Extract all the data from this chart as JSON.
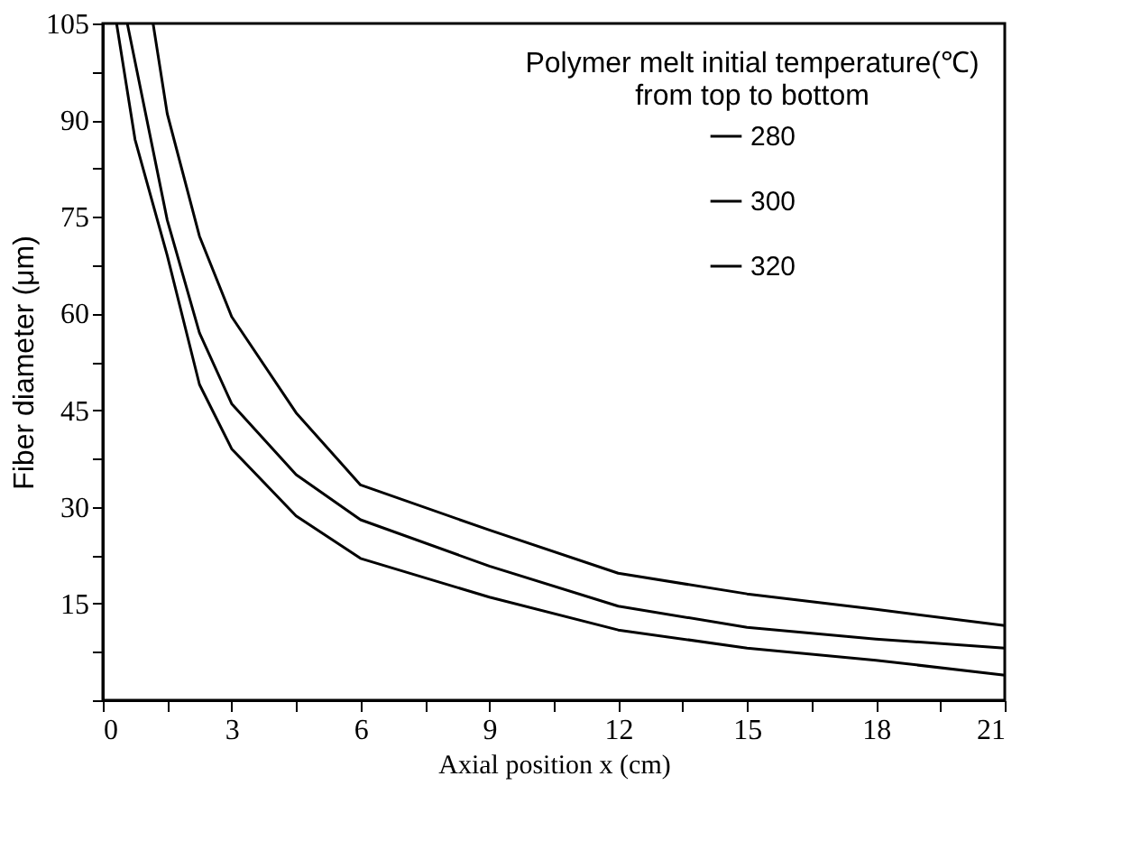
{
  "chart_data": {
    "type": "line",
    "xlabel": "Axial position x (cm)",
    "ylabel": "Fiber diameter (μm)",
    "legend_title": "Polymer melt initial temperature(℃) from top to bottom",
    "series": [
      {
        "name": "280",
        "color": "#000000",
        "x": [
          1.17,
          1.5,
          2.25,
          3,
          4.5,
          6,
          9,
          12,
          15,
          18,
          21
        ],
        "values": [
          105,
          91,
          72,
          59.5,
          44.6,
          33.4,
          26.4,
          19.7,
          16.5,
          14.1,
          11.6
        ]
      },
      {
        "name": "300",
        "color": "#000000",
        "x": [
          0.57,
          1.5,
          2.25,
          3,
          4.5,
          6,
          9,
          12,
          15,
          18,
          21
        ],
        "values": [
          105,
          74.5,
          57,
          46,
          35,
          28,
          20.8,
          14.6,
          11.3,
          9.5,
          8.1
        ]
      },
      {
        "name": "320",
        "color": "#000000",
        "x": [
          0.32,
          0.75,
          1.5,
          2.25,
          3,
          4.5,
          6,
          9,
          12,
          15,
          18,
          21
        ],
        "values": [
          105,
          87,
          69,
          49,
          39,
          28.6,
          22,
          16,
          10.9,
          8.1,
          6.2,
          3.9
        ]
      }
    ],
    "xlim": [
      0,
      21
    ],
    "ylim": [
      0,
      105
    ],
    "xticks": [
      0,
      {
        "value": 1.5,
        "label": null
      },
      3,
      {
        "value": 4.5,
        "label": null
      },
      6,
      {
        "value": 7.5,
        "label": null
      },
      9,
      {
        "value": 10.5,
        "label": null
      },
      12,
      {
        "value": 13.5,
        "label": null
      },
      15,
      {
        "value": 16.5,
        "label": null
      },
      18,
      {
        "value": 19.5,
        "label": null
      },
      21
    ],
    "yticks": [
      {
        "value": 0,
        "label": null
      },
      {
        "value": 7.5,
        "label": null
      },
      15,
      {
        "value": 22.5,
        "label": null
      },
      30,
      {
        "value": 37.5,
        "label": null
      },
      45,
      {
        "value": 52.5,
        "label": null
      },
      60,
      {
        "value": 67.5,
        "label": null
      },
      75,
      {
        "value": 82.5,
        "label": null
      },
      90,
      {
        "value": 97.5,
        "label": null
      },
      105
    ],
    "grid": false,
    "legend": "top right",
    "marker": "none",
    "line_style": "solid"
  }
}
